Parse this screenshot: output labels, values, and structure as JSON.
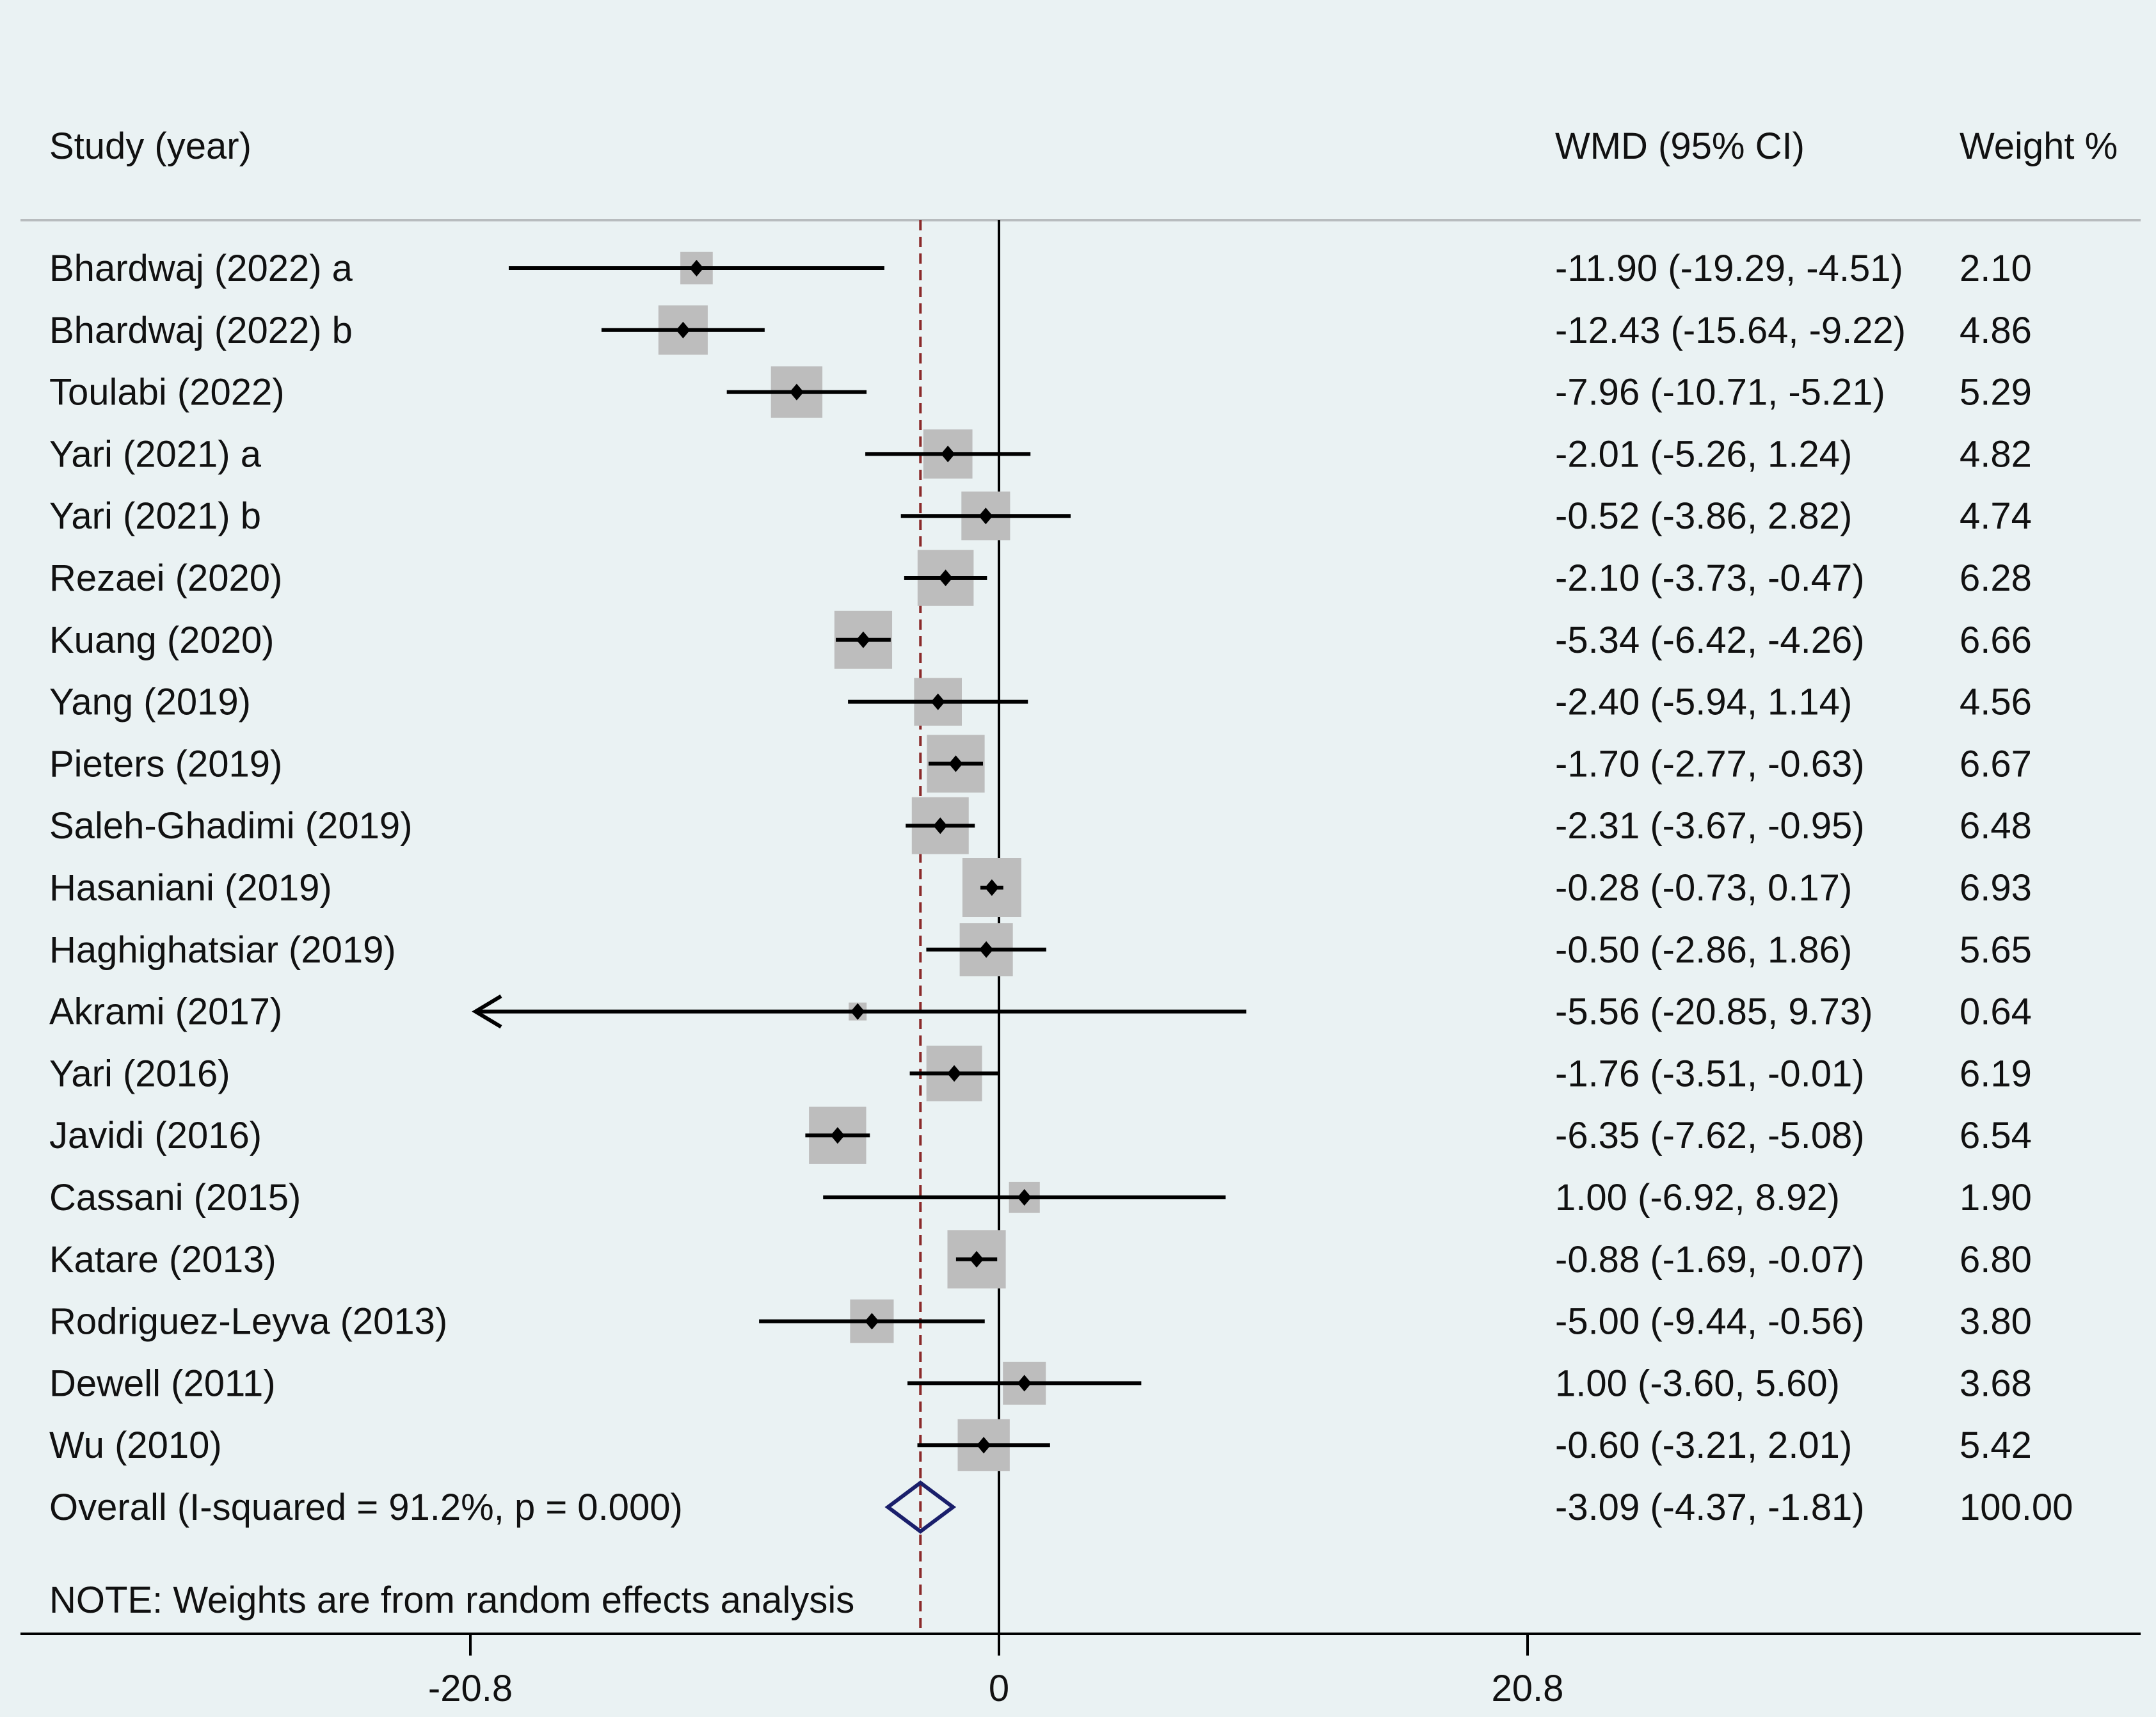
{
  "chart_data": {
    "type": "forest",
    "headers": {
      "study": "Study (year)",
      "effect": "WMD (95% CI)",
      "weight": "Weight %"
    },
    "studies": [
      {
        "label": "Bhardwaj (2022) a",
        "est": -11.9,
        "lo": -19.29,
        "hi": -4.51,
        "ci_text": "-11.90 (-19.29, -4.51)",
        "weight": 2.1,
        "weight_text": "2.10"
      },
      {
        "label": "Bhardwaj (2022) b",
        "est": -12.43,
        "lo": -15.64,
        "hi": -9.22,
        "ci_text": "-12.43 (-15.64, -9.22)",
        "weight": 4.86,
        "weight_text": "4.86"
      },
      {
        "label": "Toulabi (2022)",
        "est": -7.96,
        "lo": -10.71,
        "hi": -5.21,
        "ci_text": "-7.96 (-10.71, -5.21)",
        "weight": 5.29,
        "weight_text": "5.29"
      },
      {
        "label": "Yari (2021) a",
        "est": -2.01,
        "lo": -5.26,
        "hi": 1.24,
        "ci_text": "-2.01 (-5.26, 1.24)",
        "weight": 4.82,
        "weight_text": "4.82"
      },
      {
        "label": "Yari (2021) b",
        "est": -0.52,
        "lo": -3.86,
        "hi": 2.82,
        "ci_text": "-0.52 (-3.86, 2.82)",
        "weight": 4.74,
        "weight_text": "4.74"
      },
      {
        "label": "Rezaei (2020)",
        "est": -2.1,
        "lo": -3.73,
        "hi": -0.47,
        "ci_text": "-2.10 (-3.73, -0.47)",
        "weight": 6.28,
        "weight_text": "6.28"
      },
      {
        "label": "Kuang (2020)",
        "est": -5.34,
        "lo": -6.42,
        "hi": -4.26,
        "ci_text": "-5.34 (-6.42, -4.26)",
        "weight": 6.66,
        "weight_text": "6.66"
      },
      {
        "label": "Yang (2019)",
        "est": -2.4,
        "lo": -5.94,
        "hi": 1.14,
        "ci_text": "-2.40 (-5.94, 1.14)",
        "weight": 4.56,
        "weight_text": "4.56"
      },
      {
        "label": "Pieters (2019)",
        "est": -1.7,
        "lo": -2.77,
        "hi": -0.63,
        "ci_text": "-1.70 (-2.77, -0.63)",
        "weight": 6.67,
        "weight_text": "6.67"
      },
      {
        "label": "Saleh-Ghadimi (2019)",
        "est": -2.31,
        "lo": -3.67,
        "hi": -0.95,
        "ci_text": "-2.31 (-3.67, -0.95)",
        "weight": 6.48,
        "weight_text": "6.48"
      },
      {
        "label": "Hasaniani (2019)",
        "est": -0.28,
        "lo": -0.73,
        "hi": 0.17,
        "ci_text": "-0.28 (-0.73, 0.17)",
        "weight": 6.93,
        "weight_text": "6.93"
      },
      {
        "label": "Haghighatsiar (2019)",
        "est": -0.5,
        "lo": -2.86,
        "hi": 1.86,
        "ci_text": "-0.50 (-2.86, 1.86)",
        "weight": 5.65,
        "weight_text": "5.65"
      },
      {
        "label": "Akrami (2017)",
        "est": -5.56,
        "lo": -20.85,
        "hi": 9.73,
        "ci_text": "-5.56 (-20.85, 9.73)",
        "weight": 0.64,
        "weight_text": "0.64",
        "arrow_left": true
      },
      {
        "label": "Yari (2016)",
        "est": -1.76,
        "lo": -3.51,
        "hi": -0.01,
        "ci_text": "-1.76 (-3.51, -0.01)",
        "weight": 6.19,
        "weight_text": "6.19"
      },
      {
        "label": "Javidi (2016)",
        "est": -6.35,
        "lo": -7.62,
        "hi": -5.08,
        "ci_text": "-6.35 (-7.62, -5.08)",
        "weight": 6.54,
        "weight_text": "6.54"
      },
      {
        "label": "Cassani (2015)",
        "est": 1.0,
        "lo": -6.92,
        "hi": 8.92,
        "ci_text": "1.00 (-6.92, 8.92)",
        "weight": 1.9,
        "weight_text": "1.90"
      },
      {
        "label": "Katare (2013)",
        "est": -0.88,
        "lo": -1.69,
        "hi": -0.07,
        "ci_text": "-0.88 (-1.69, -0.07)",
        "weight": 6.8,
        "weight_text": "6.80"
      },
      {
        "label": "Rodriguez-Leyva (2013)",
        "est": -5.0,
        "lo": -9.44,
        "hi": -0.56,
        "ci_text": "-5.00 (-9.44, -0.56)",
        "weight": 3.8,
        "weight_text": "3.80"
      },
      {
        "label": "Dewell (2011)",
        "est": 1.0,
        "lo": -3.6,
        "hi": 5.6,
        "ci_text": "1.00 (-3.60, 5.60)",
        "weight": 3.68,
        "weight_text": "3.68"
      },
      {
        "label": "Wu (2010)",
        "est": -0.6,
        "lo": -3.21,
        "hi": 2.01,
        "ci_text": "-0.60 (-3.21, 2.01)",
        "weight": 5.42,
        "weight_text": "5.42"
      }
    ],
    "overall": {
      "label": "Overall  (I-squared = 91.2%, p = 0.000)",
      "est": -3.09,
      "lo": -4.37,
      "hi": -1.81,
      "ci_text": "-3.09 (-4.37, -1.81)",
      "weight_text": "100.00"
    },
    "note": "NOTE: Weights are from random effects analysis",
    "x_ticks": [
      {
        "value": -20.8,
        "label": "-20.8"
      },
      {
        "value": 0,
        "label": "0"
      },
      {
        "value": 20.8,
        "label": "20.8"
      }
    ],
    "colors": {
      "background": "#eaf2f3",
      "box": "#bdbdbd",
      "line": "#000000",
      "overall_diamond": "#1a1f6b",
      "overall_dashed": "#8b2a2a"
    }
  }
}
